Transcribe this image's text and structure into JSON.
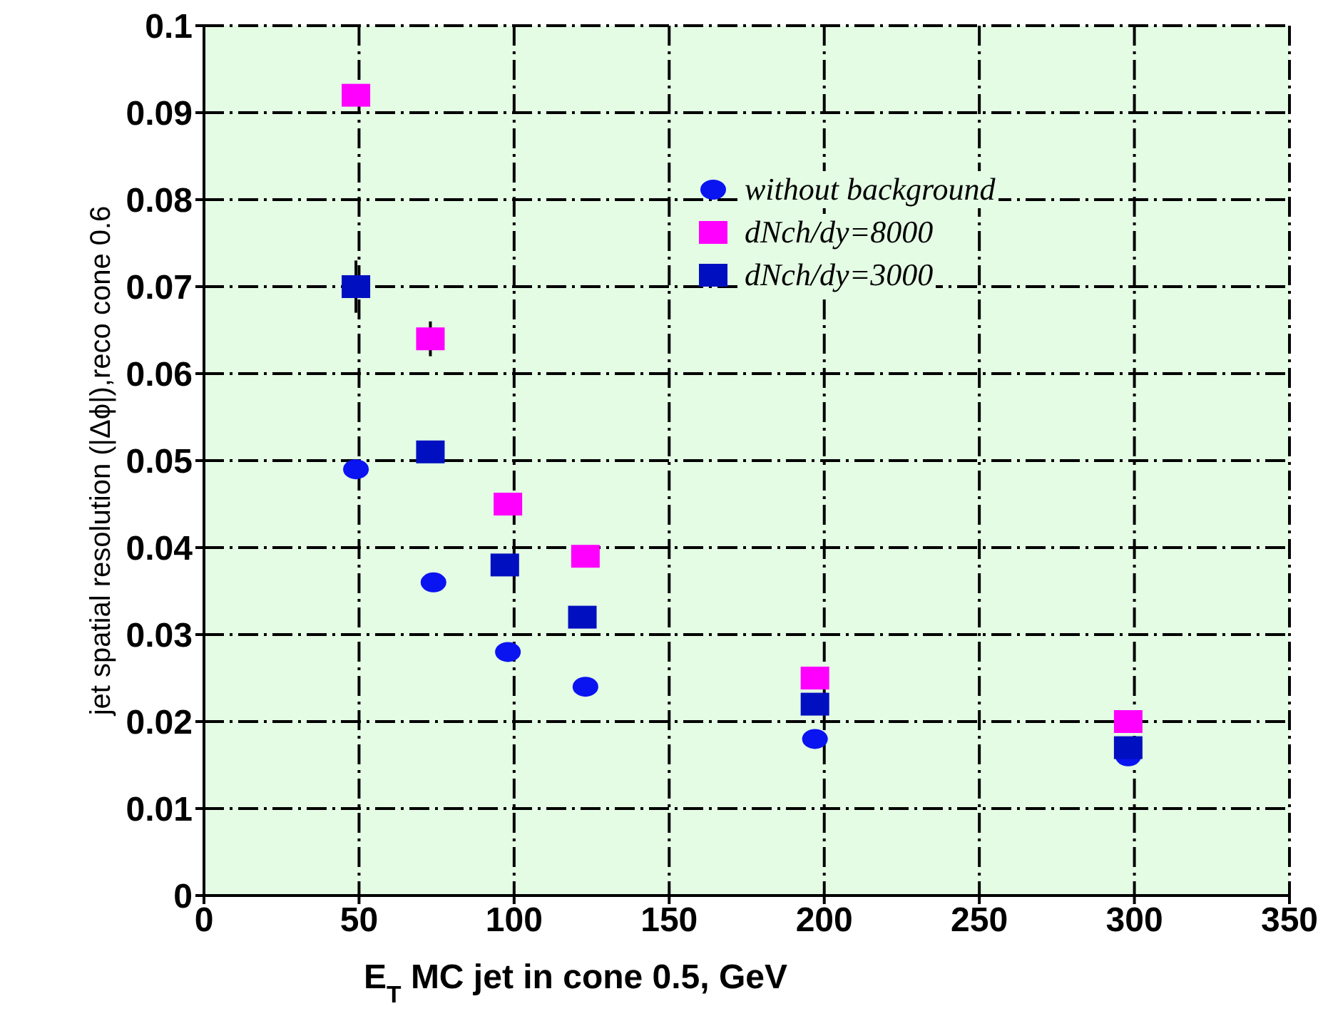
{
  "chart_data": {
    "type": "scatter",
    "xlabel": "E$_{T}$ MC jet in cone 0.5, GeV",
    "ylabel": "jet spatial resolution (|Δϕ|),reco cone 0.6",
    "xlim": [
      0,
      350
    ],
    "xticks": [
      0,
      50,
      100,
      150,
      200,
      250,
      300,
      350
    ],
    "ylim": [
      0,
      0.1
    ],
    "yticks": [
      0,
      0.01,
      0.02,
      0.03,
      0.04,
      0.05,
      0.06,
      0.07,
      0.08,
      0.09,
      0.1
    ],
    "grid": true,
    "legend": "top right",
    "series": [
      {
        "name": "without background",
        "color": "#0a14f0",
        "marker": "circle",
        "x": [
          49,
          74,
          98,
          123,
          197,
          298
        ],
        "values": [
          0.049,
          0.036,
          0.028,
          0.024,
          0.018,
          0.016
        ]
      },
      {
        "name": "dNch/dy=8000",
        "color": "#ff00ff",
        "marker": "square",
        "x": [
          49,
          73,
          98,
          123,
          197,
          298
        ],
        "values": [
          0.092,
          0.064,
          0.045,
          0.039,
          0.025,
          0.02
        ],
        "errors": [
          null,
          0.002,
          null,
          null,
          null,
          null
        ]
      },
      {
        "name": "dNch/dy=3000",
        "color": "#0010c0",
        "marker": "square",
        "x": [
          49,
          73,
          97,
          122,
          197,
          298
        ],
        "values": [
          0.07,
          0.051,
          0.038,
          0.032,
          0.022,
          0.017
        ],
        "errors": [
          0.003,
          null,
          null,
          null,
          null,
          null
        ]
      }
    ]
  }
}
